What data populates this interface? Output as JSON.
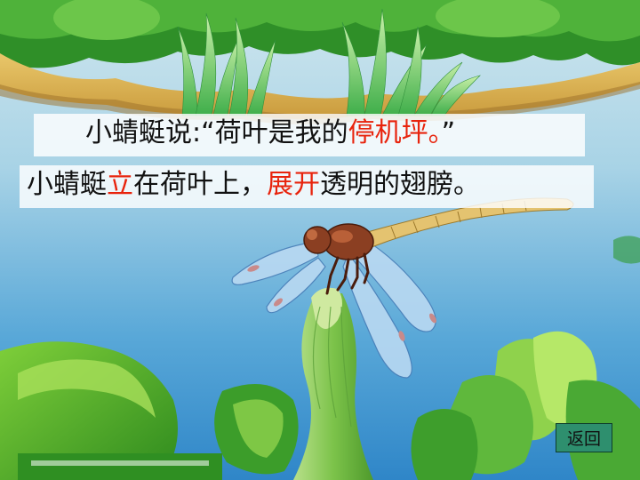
{
  "slide": {
    "line1": {
      "speaker": "小蜻蜓说:",
      "quote_open": "“荷叶是我的",
      "quote_highlight": "停机坪。",
      "quote_close": "”"
    },
    "line2": {
      "part1": "小蜻蜓",
      "highlight1": "立",
      "part2": "在荷叶上，",
      "highlight2": "展开",
      "part3": "透明的翅膀。"
    },
    "back_button_label": "返回"
  },
  "colors": {
    "highlight": "#e8230c",
    "button_bg": "#2e8f6e"
  }
}
